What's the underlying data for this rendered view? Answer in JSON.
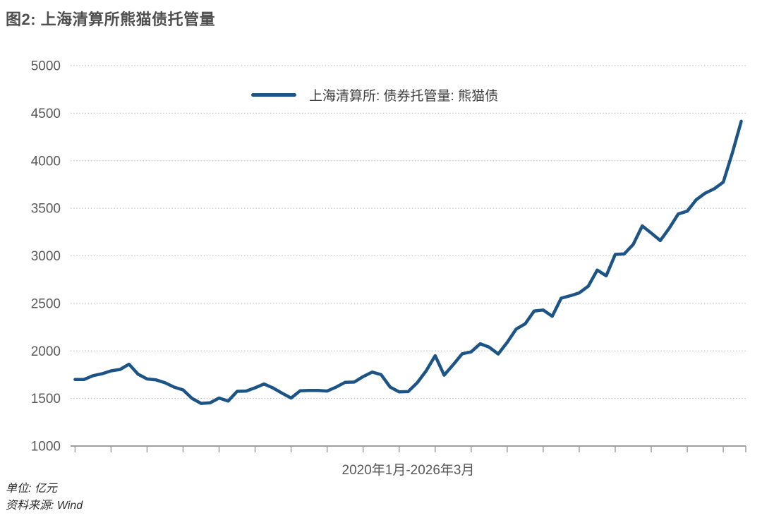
{
  "title": "图2: 上海清算所熊猫债托管量",
  "legend": {
    "label": "上海清算所: 债券托管量: 熊猫债"
  },
  "footer": {
    "unit": "单位: 亿元",
    "source": "资料来源: Wind"
  },
  "colors": {
    "series_line": "#1c5486",
    "title_text": "#4f4f4f",
    "axis_text": "#595959",
    "gridline": "#c3c3c3",
    "axis_line": "#9e9e9e"
  },
  "chart_data": {
    "type": "line",
    "title": "图2: 上海清算所熊猫债托管量",
    "x_range_label": "2020年1月-2026年3月",
    "x_start": "2020-01",
    "x_end": "2026-03",
    "x_frequency": "monthly",
    "xlabel": "",
    "ylabel": "",
    "unit": "亿元",
    "source": "Wind",
    "ylim": [
      1000,
      5000
    ],
    "ytick_step": 500,
    "yticks": [
      1000,
      1500,
      2000,
      2500,
      3000,
      3500,
      4000,
      4500,
      5000
    ],
    "grid": "horizontal-dotted",
    "legend_position": "top-center",
    "series": [
      {
        "name": "上海清算所: 债券托管量: 熊猫债",
        "color": "#1c5486",
        "values": [
          1700,
          1700,
          1740,
          1760,
          1790,
          1805,
          1860,
          1755,
          1705,
          1695,
          1665,
          1620,
          1590,
          1500,
          1448,
          1455,
          1505,
          1473,
          1575,
          1578,
          1612,
          1652,
          1610,
          1555,
          1505,
          1580,
          1585,
          1585,
          1578,
          1620,
          1670,
          1672,
          1730,
          1778,
          1750,
          1620,
          1570,
          1572,
          1665,
          1790,
          1950,
          1745,
          1855,
          1970,
          1990,
          2075,
          2040,
          1968,
          2090,
          2230,
          2285,
          2420,
          2430,
          2365,
          2555,
          2580,
          2610,
          2680,
          2850,
          2790,
          3015,
          3020,
          3120,
          3315,
          3240,
          3160,
          3290,
          3440,
          3470,
          3590,
          3660,
          3705,
          3775,
          4080,
          4415
        ]
      }
    ]
  }
}
